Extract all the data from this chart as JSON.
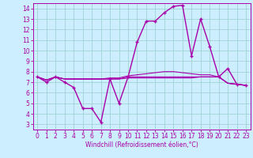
{
  "title": "",
  "xlabel": "Windchill (Refroidissement éolien,°C)",
  "ylabel": "",
  "xlim": [
    -0.5,
    23.5
  ],
  "ylim": [
    2.5,
    14.5
  ],
  "yticks": [
    3,
    4,
    5,
    6,
    7,
    8,
    9,
    10,
    11,
    12,
    13,
    14
  ],
  "xticks": [
    0,
    1,
    2,
    3,
    4,
    5,
    6,
    7,
    8,
    9,
    10,
    11,
    12,
    13,
    14,
    15,
    16,
    17,
    18,
    19,
    20,
    21,
    22,
    23
  ],
  "background_color": "#cceeff",
  "line_color": "#aa00aa",
  "grid_color": "#99cccc",
  "lines": [
    {
      "x": [
        0,
        1,
        2,
        3,
        4,
        5,
        6,
        7,
        8,
        9,
        10,
        11,
        12,
        13,
        14,
        15,
        16,
        17,
        18,
        19,
        20,
        21,
        22,
        23
      ],
      "y": [
        7.5,
        7.0,
        7.5,
        7.0,
        6.5,
        4.5,
        4.5,
        3.2,
        7.3,
        5.0,
        7.5,
        10.8,
        12.8,
        12.8,
        13.6,
        14.2,
        14.3,
        9.5,
        13.0,
        10.4,
        7.5,
        8.3,
        6.8,
        6.7
      ],
      "marker": "+",
      "lw": 1.0,
      "ms": 3.5
    },
    {
      "x": [
        0,
        1,
        2,
        3,
        4,
        5,
        6,
        7,
        8,
        9,
        10,
        11,
        12,
        13,
        14,
        15,
        16,
        17,
        18,
        19,
        20,
        21,
        22,
        23
      ],
      "y": [
        7.5,
        7.2,
        7.5,
        7.3,
        7.3,
        7.3,
        7.3,
        7.3,
        7.3,
        7.3,
        7.4,
        7.4,
        7.4,
        7.4,
        7.4,
        7.4,
        7.4,
        7.4,
        7.5,
        7.5,
        7.5,
        6.9,
        6.8,
        6.7
      ],
      "marker": null,
      "lw": 0.8,
      "ms": 0
    },
    {
      "x": [
        0,
        1,
        2,
        3,
        4,
        5,
        6,
        7,
        8,
        9,
        10,
        11,
        12,
        13,
        14,
        15,
        16,
        17,
        18,
        19,
        20,
        21,
        22,
        23
      ],
      "y": [
        7.5,
        7.2,
        7.5,
        7.3,
        7.3,
        7.3,
        7.3,
        7.3,
        7.4,
        7.4,
        7.6,
        7.7,
        7.8,
        7.9,
        8.0,
        8.0,
        7.9,
        7.8,
        7.7,
        7.7,
        7.5,
        6.9,
        6.8,
        6.7
      ],
      "marker": null,
      "lw": 0.8,
      "ms": 0
    },
    {
      "x": [
        0,
        1,
        2,
        3,
        4,
        5,
        6,
        7,
        8,
        9,
        10,
        11,
        12,
        13,
        14,
        15,
        16,
        17,
        18,
        19,
        20,
        21,
        22,
        23
      ],
      "y": [
        7.5,
        7.2,
        7.5,
        7.3,
        7.3,
        7.3,
        7.3,
        7.3,
        7.3,
        7.3,
        7.5,
        7.5,
        7.5,
        7.5,
        7.5,
        7.5,
        7.5,
        7.5,
        7.5,
        7.5,
        7.5,
        6.9,
        6.8,
        6.7
      ],
      "marker": null,
      "lw": 0.8,
      "ms": 0
    }
  ],
  "tick_fontsize": 5.5,
  "xlabel_fontsize": 5.5
}
